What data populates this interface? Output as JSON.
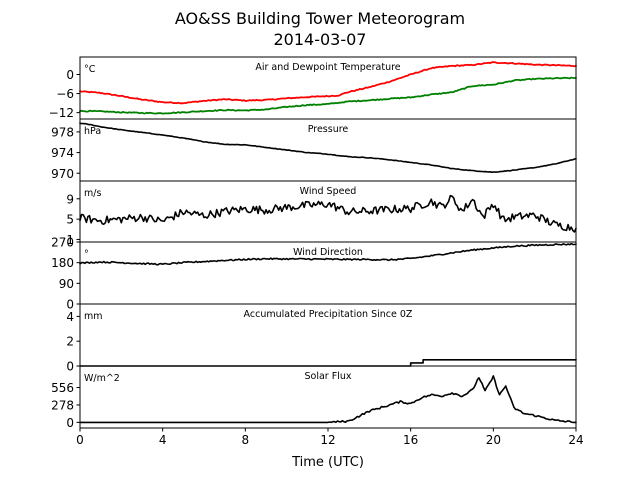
{
  "title": "AO&SS Building Tower Meteorogram",
  "subtitle": "2014-03-07",
  "xlabel": "Time (UTC)",
  "colors": {
    "temperature": "#ff0000",
    "dewpoint": "#008000",
    "line": "#000000"
  },
  "chart_data": {
    "type": "line",
    "x_ticks": [
      0,
      4,
      8,
      12,
      16,
      20,
      24
    ],
    "x_tick_labels": [
      "0",
      "4",
      "8",
      "12",
      "16",
      "20",
      "24"
    ],
    "xlim": [
      0,
      24
    ],
    "panels": [
      {
        "title": "Air and Dewpoint Temperature",
        "unit": "°C",
        "ylim": [
          -14,
          5.5
        ],
        "yticks": [
          0,
          -6,
          -12
        ],
        "ytick_labels": [
          "0",
          "−6",
          "−12"
        ],
        "series": [
          {
            "color": "#ff0000",
            "x": [
              0,
              1,
              2,
              3,
              4,
              5,
              6,
              7,
              8,
              9,
              10,
              11,
              12,
              12.5,
              13,
              14,
              15,
              16,
              17,
              18,
              19,
              20,
              21,
              22,
              23,
              24
            ],
            "y": [
              -5.3,
              -5.8,
              -6.8,
              -7.9,
              -8.7,
              -9.0,
              -8.3,
              -7.8,
              -8.2,
              -8.0,
              -7.5,
              -7.1,
              -6.8,
              -6.6,
              -5.5,
              -4.0,
              -2.2,
              0.0,
              2.0,
              2.7,
              3.0,
              3.8,
              3.5,
              3.1,
              2.9,
              2.7
            ]
          },
          {
            "color": "#008000",
            "x": [
              0,
              1,
              2,
              3,
              4,
              5,
              6,
              7,
              8,
              9,
              10,
              11,
              12,
              13,
              14,
              15,
              16,
              17,
              18,
              19,
              20,
              21,
              22,
              23,
              24
            ],
            "y": [
              -11.5,
              -11.6,
              -11.9,
              -12.1,
              -12.2,
              -11.9,
              -11.5,
              -11.2,
              -11.3,
              -11.0,
              -10.2,
              -9.6,
              -9.3,
              -8.5,
              -8.1,
              -7.6,
              -7.2,
              -6.3,
              -5.6,
              -3.6,
              -3.2,
              -1.9,
              -1.4,
              -1.2,
              -1.1
            ]
          }
        ]
      },
      {
        "title": "Pressure",
        "unit": "hPa",
        "ylim": [
          968.5,
          980.5
        ],
        "yticks": [
          978,
          974,
          970
        ],
        "ytick_labels": [
          "978",
          "974",
          "970"
        ],
        "series": [
          {
            "color": "#000000",
            "x": [
              0,
              0.5,
              1,
              2,
              3,
              4,
              5,
              6,
              7,
              8,
              9,
              10,
              11,
              12,
              13,
              14,
              15,
              16,
              17,
              18,
              19,
              20,
              21,
              22,
              23,
              24
            ],
            "y": [
              979.7,
              979.4,
              979.0,
              978.4,
              977.9,
              977.4,
              976.8,
              976.1,
              975.6,
              975.5,
              975.0,
              974.5,
              974.0,
              973.7,
              973.2,
              973.0,
              972.6,
              972.1,
              971.6,
              970.9,
              970.5,
              970.2,
              970.6,
              971.1,
              971.8,
              972.8
            ]
          }
        ]
      },
      {
        "title": "Wind Speed",
        "unit": "m/s",
        "ylim": [
          0.5,
          12.5
        ],
        "yticks": [
          9,
          5,
          1
        ],
        "ytick_labels": [
          "9",
          "5",
          "1"
        ],
        "series": [
          {
            "color": "#000000",
            "x": [
              0,
              1,
              2,
              3,
              4,
              5,
              6,
              7,
              8,
              9,
              10,
              11,
              12,
              13,
              14,
              15,
              16,
              17,
              17.5,
              18,
              18.5,
              19,
              19.5,
              20,
              20.5,
              21,
              22,
              23,
              24
            ],
            "y": [
              5.2,
              4.7,
              5.0,
              5.4,
              4.6,
              6.4,
              5.7,
              6.5,
              7.0,
              6.8,
              7.3,
              7.7,
              8.0,
              6.4,
              6.6,
              6.9,
              7.1,
              8.5,
              7.4,
              9.2,
              6.6,
              8.9,
              5.4,
              8.1,
              4.8,
              5.4,
              5.8,
              3.9,
              3.2
            ]
          }
        ]
      },
      {
        "title": "Wind Direction",
        "unit": "°",
        "ylim": [
          0,
          270
        ],
        "yticks": [
          270,
          180,
          90,
          0
        ],
        "ytick_labels": [
          "270",
          "180",
          "90",
          "0"
        ],
        "series": [
          {
            "color": "#000000",
            "x": [
              0,
              1,
              2,
              3,
              4,
              5,
              6,
              7,
              8,
              9,
              10,
              11,
              12,
              13,
              14,
              15,
              16,
              17,
              18,
              19,
              20,
              21,
              22,
              23,
              24
            ],
            "y": [
              178,
              183,
              180,
              176,
              173,
              180,
              185,
              190,
              194,
              197,
              196,
              196,
              195,
              194,
              194,
              192,
              198,
              210,
              223,
              235,
              244,
              252,
              256,
              259,
              261
            ]
          }
        ]
      },
      {
        "title": "Accumulated Precipitation Since 0Z",
        "unit": "mm",
        "ylim": [
          0,
          5
        ],
        "yticks": [
          4,
          2,
          0
        ],
        "ytick_labels": [
          "4",
          "2",
          "0"
        ],
        "series": [
          {
            "color": "#000000",
            "x": [
              0,
              16.0,
              16.0,
              16.6,
              16.6,
              24
            ],
            "y": [
              0,
              0,
              0.25,
              0.25,
              0.5,
              0.5
            ]
          }
        ]
      },
      {
        "title": "Solar Flux",
        "unit": "W/m^2",
        "ylim": [
          -90,
          900
        ],
        "yticks": [
          556,
          278,
          0
        ],
        "ytick_labels": [
          "556",
          "278",
          "0"
        ],
        "series": [
          {
            "color": "#000000",
            "x": [
              0,
              12,
              13,
              13.5,
              14,
              14.5,
              15,
              15.5,
              16,
              16.5,
              17,
              17.5,
              18,
              18.5,
              19,
              19.3,
              19.6,
              20,
              20.3,
              20.6,
              21,
              21.5,
              22,
              23,
              24
            ],
            "y": [
              0,
              0,
              20,
              100,
              180,
              230,
              280,
              330,
              300,
              390,
              440,
              420,
              470,
              420,
              520,
              720,
              500,
              730,
              440,
              580,
              230,
              140,
              110,
              30,
              0
            ]
          }
        ]
      }
    ]
  }
}
